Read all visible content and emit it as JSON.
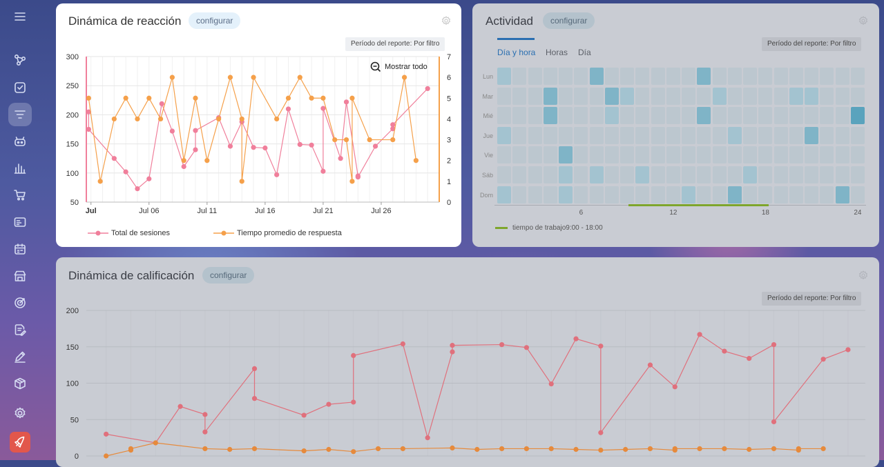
{
  "sidebar": {
    "items": [
      {
        "icon": "menu-icon",
        "active": false
      },
      {
        "icon": "nodes-icon",
        "active": false
      },
      {
        "icon": "checkbox-icon",
        "active": false
      },
      {
        "icon": "filter-icon",
        "active": true
      },
      {
        "icon": "robot-icon",
        "active": false
      },
      {
        "icon": "bar-chart-icon",
        "active": false
      },
      {
        "icon": "cart-icon",
        "active": false
      },
      {
        "icon": "id-card-icon",
        "active": false
      },
      {
        "icon": "calendar-icon",
        "active": false
      },
      {
        "icon": "store-icon",
        "active": false
      },
      {
        "icon": "target-icon",
        "active": false
      },
      {
        "icon": "edit-document-icon",
        "active": false
      },
      {
        "icon": "pen-icon",
        "active": false
      },
      {
        "icon": "box-icon",
        "active": false
      },
      {
        "icon": "settings-icon",
        "active": false
      },
      {
        "icon": "rocket-icon",
        "active": false
      }
    ]
  },
  "reaction": {
    "title": "Dinámica de reacción",
    "configure": "configurar",
    "period": "Período del reporte: Por filtro",
    "show_all": "Mostrar todo"
  },
  "activity": {
    "title": "Actividad",
    "configure": "configurar",
    "period": "Período del reporte: Por filtro",
    "tabs": [
      "Día y hora",
      "Horas",
      "Día"
    ],
    "work_time": "tiempo de trabajo9:00 - 18:00"
  },
  "rating": {
    "title": "Dinámica de calificación",
    "configure": "configurar",
    "period": "Período del reporte: Por filtro"
  },
  "chart_data": [
    {
      "type": "line",
      "title": "Dinámica de reacción",
      "x_tick_labels": [
        "Jul",
        "Jul 06",
        "Jul 11",
        "Jul 16",
        "Jul 21",
        "Jul 26"
      ],
      "x_tick_days": [
        1,
        6,
        11,
        16,
        21,
        26
      ],
      "ylim_left": [
        50,
        300
      ],
      "yticks_left": [
        50,
        100,
        150,
        200,
        250,
        300
      ],
      "ylim_right": [
        0,
        7
      ],
      "yticks_right": [
        0,
        1,
        2,
        3,
        4,
        5,
        6,
        7
      ],
      "legend_position": "bottom",
      "series": [
        {
          "name": "Total de sesiones",
          "axis": "left",
          "color": "#f07f9b",
          "points": [
            [
              0.8,
              205
            ],
            [
              0.8,
              175
            ],
            [
              3,
              125
            ],
            [
              4,
              102
            ],
            [
              5,
              73
            ],
            [
              6,
              90
            ],
            [
              7.1,
              219
            ],
            [
              8,
              172
            ],
            [
              9,
              111
            ],
            [
              10,
              140
            ],
            [
              10,
              173
            ],
            [
              12,
              195
            ],
            [
              13,
              146
            ],
            [
              14,
              188
            ],
            [
              15,
              144
            ],
            [
              16,
              143
            ],
            [
              17,
              97
            ],
            [
              18,
              210
            ],
            [
              19,
              149
            ],
            [
              20,
              148
            ],
            [
              21,
              103
            ],
            [
              21,
              211
            ],
            [
              22.5,
              125
            ],
            [
              23,
              222
            ],
            [
              24,
              95
            ],
            [
              24,
              93
            ],
            [
              25.5,
              146
            ],
            [
              27,
              176
            ],
            [
              27,
              183
            ],
            [
              30,
              245
            ]
          ]
        },
        {
          "name": "Tiempo promedio de respuesta",
          "axis": "right",
          "color": "#f5a04a",
          "points": [
            [
              0.8,
              5
            ],
            [
              1.8,
              1
            ],
            [
              3,
              4
            ],
            [
              4,
              5
            ],
            [
              5,
              4
            ],
            [
              6,
              5
            ],
            [
              7,
              4
            ],
            [
              8,
              6
            ],
            [
              9,
              2
            ],
            [
              10,
              5
            ],
            [
              11,
              2
            ],
            [
              12,
              4
            ],
            [
              13,
              6
            ],
            [
              14,
              4
            ],
            [
              14,
              1
            ],
            [
              15,
              6
            ],
            [
              17,
              4
            ],
            [
              18,
              5
            ],
            [
              19,
              6
            ],
            [
              20,
              5
            ],
            [
              21,
              5
            ],
            [
              22,
              3
            ],
            [
              23,
              3
            ],
            [
              23.5,
              1
            ],
            [
              23.5,
              5
            ],
            [
              25,
              3
            ],
            [
              27,
              3
            ],
            [
              28,
              6
            ],
            [
              29,
              2
            ]
          ]
        }
      ]
    },
    {
      "type": "heatmap",
      "title": "Actividad",
      "rows": [
        "Lun",
        "Mar",
        "Mié",
        "Jue",
        "Vie",
        "Sáb",
        "Dom"
      ],
      "x_ticks": [
        6,
        12,
        18,
        24
      ],
      "columns": 24,
      "work_hours": [
        9,
        18
      ],
      "intensity": [
        [
          1,
          0,
          0,
          0,
          0,
          0,
          2,
          0,
          0,
          0,
          0,
          0,
          0,
          2,
          0,
          0,
          0,
          0,
          0,
          0,
          0,
          0,
          0,
          0
        ],
        [
          0,
          0,
          0,
          2,
          0,
          0,
          0,
          2,
          1,
          0,
          0,
          0,
          0,
          0,
          1,
          0,
          0,
          0,
          0,
          1,
          1,
          0,
          0,
          0
        ],
        [
          0,
          0,
          0,
          2,
          0,
          0,
          0,
          1,
          0,
          0,
          0,
          0,
          0,
          2,
          0,
          0,
          0,
          0,
          0,
          0,
          0,
          0,
          0,
          3
        ],
        [
          1,
          0,
          0,
          0,
          0,
          0,
          0,
          0,
          0,
          0,
          0,
          0,
          0,
          0,
          0,
          1,
          0,
          0,
          0,
          0,
          2,
          0,
          0,
          0
        ],
        [
          0,
          0,
          0,
          0,
          2,
          0,
          0,
          0,
          0,
          0,
          0,
          0,
          0,
          0,
          0,
          0,
          0,
          0,
          0,
          0,
          0,
          0,
          0,
          0
        ],
        [
          0,
          0,
          0,
          0,
          1,
          0,
          1,
          0,
          0,
          1,
          0,
          0,
          0,
          0,
          0,
          0,
          1,
          0,
          0,
          0,
          0,
          0,
          0,
          0
        ],
        [
          1,
          0,
          0,
          0,
          1,
          0,
          0,
          0,
          0,
          0,
          0,
          0,
          1,
          0,
          0,
          2,
          0,
          0,
          0,
          0,
          0,
          0,
          2,
          0
        ]
      ]
    },
    {
      "type": "line",
      "title": "Dinámica de calificación",
      "ylim": [
        0,
        200
      ],
      "yticks": [
        0,
        50,
        100,
        150,
        200
      ],
      "series": [
        {
          "color": "#e0707c",
          "points": [
            [
              1,
              30
            ],
            [
              3,
              18
            ],
            [
              4,
              68
            ],
            [
              5,
              57
            ],
            [
              5,
              33
            ],
            [
              7,
              120
            ],
            [
              7,
              79
            ],
            [
              9,
              56
            ],
            [
              10,
              71
            ],
            [
              11,
              74
            ],
            [
              11,
              138
            ],
            [
              13,
              154
            ],
            [
              14,
              25
            ],
            [
              15,
              143
            ],
            [
              15,
              152
            ],
            [
              17,
              153
            ],
            [
              18,
              149
            ],
            [
              19,
              99
            ],
            [
              20,
              161
            ],
            [
              21,
              151
            ],
            [
              21,
              32
            ],
            [
              23,
              125
            ],
            [
              24,
              95
            ],
            [
              25,
              167
            ],
            [
              26,
              144
            ],
            [
              27,
              134
            ],
            [
              28,
              153
            ],
            [
              28,
              47
            ],
            [
              30,
              133
            ],
            [
              31,
              146
            ]
          ]
        },
        {
          "color": "#e68a3c",
          "points": [
            [
              1,
              0
            ],
            [
              2,
              8
            ],
            [
              2,
              10
            ],
            [
              3,
              18
            ],
            [
              5,
              10
            ],
            [
              6,
              9
            ],
            [
              7,
              10
            ],
            [
              9,
              7
            ],
            [
              10,
              9
            ],
            [
              11,
              6
            ],
            [
              12,
              10
            ],
            [
              13,
              10
            ],
            [
              15,
              11
            ],
            [
              16,
              9
            ],
            [
              17,
              10
            ],
            [
              18,
              10
            ],
            [
              19,
              10
            ],
            [
              20,
              9
            ],
            [
              21,
              8
            ],
            [
              22,
              9
            ],
            [
              23,
              10
            ],
            [
              24,
              8
            ],
            [
              24,
              10
            ],
            [
              25,
              10
            ],
            [
              26,
              10
            ],
            [
              27,
              9
            ],
            [
              28,
              10
            ],
            [
              29,
              8
            ],
            [
              29,
              10
            ],
            [
              30,
              10
            ]
          ]
        }
      ]
    }
  ]
}
